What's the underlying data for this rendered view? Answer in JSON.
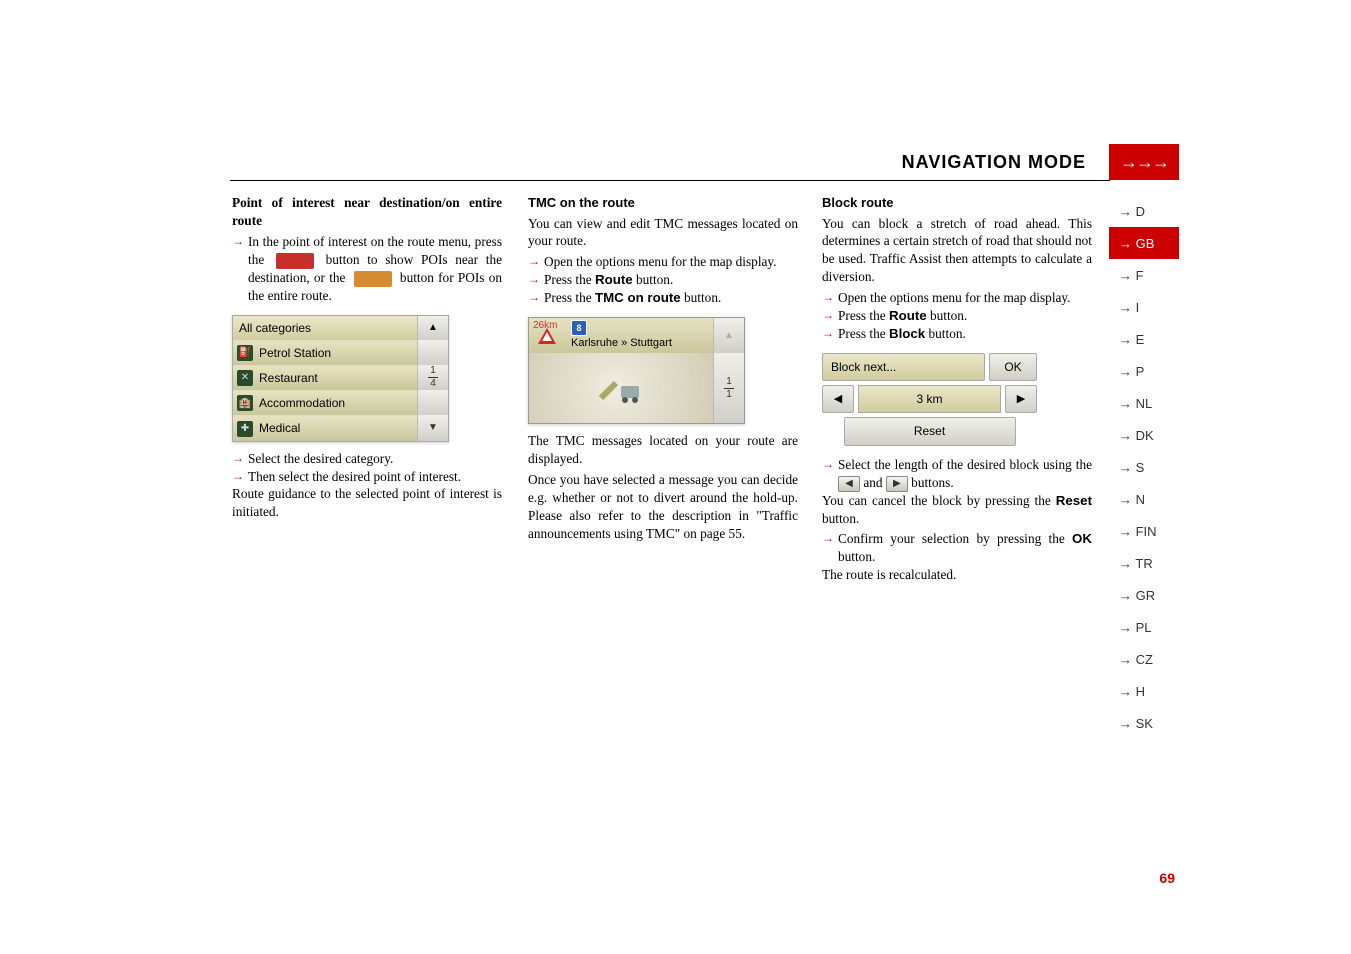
{
  "header": {
    "title": "NAVIGATION MODE",
    "arrows": "→→→"
  },
  "sidebar": {
    "items": [
      {
        "label": "→ D",
        "active": false
      },
      {
        "label": "→ GB",
        "active": true
      },
      {
        "label": "→ F",
        "active": false
      },
      {
        "label": "→ I",
        "active": false
      },
      {
        "label": "→ E",
        "active": false
      },
      {
        "label": "→ P",
        "active": false
      },
      {
        "label": "→ NL",
        "active": false
      },
      {
        "label": "→ DK",
        "active": false
      },
      {
        "label": "→ S",
        "active": false
      },
      {
        "label": "→ N",
        "active": false
      },
      {
        "label": "→ FIN",
        "active": false
      },
      {
        "label": "→ TR",
        "active": false
      },
      {
        "label": "→ GR",
        "active": false
      },
      {
        "label": "→ PL",
        "active": false
      },
      {
        "label": "→ CZ",
        "active": false
      },
      {
        "label": "→ H",
        "active": false
      },
      {
        "label": "→ SK",
        "active": false
      }
    ]
  },
  "col1": {
    "heading": "Point of interest near destination/on entire route",
    "p1a": "In the point of interest on the route menu, press the",
    "p1b": "button to show POIs near the destination, or the",
    "p1c": "button for POIs on the entire route.",
    "btn1_bg": "#c62f2a",
    "btn2_bg": "#d68b2e",
    "cats": {
      "title": "All categories",
      "rows": [
        {
          "icon": "⛽",
          "label": "Petrol Station"
        },
        {
          "icon": "✕",
          "label": "Restaurant"
        },
        {
          "icon": "🏨",
          "label": "Accommodation"
        },
        {
          "icon": "✚",
          "label": "Medical"
        }
      ],
      "frac_top": "1",
      "frac_bot": "4",
      "up": "▲",
      "down": "▼"
    },
    "step2": "Select the desired category.",
    "step3": "Then select the desired point of interest.",
    "p2": "Route guidance to the selected point of interest is initiated."
  },
  "col2": {
    "heading": "TMC on the route",
    "p1": "You can view and edit TMC messages located on your route.",
    "step1": "Open the options menu for the map display.",
    "step2_a": "Press the ",
    "step2_b": "Route",
    "step2_c": " button.",
    "step3_a": "Press the ",
    "step3_b": "TMC on route",
    "step3_c": " button.",
    "tmc": {
      "dist": "26km",
      "road": "8",
      "route": "Karlsruhe » Stuttgart",
      "frac_top": "1",
      "frac_bot": "1",
      "up": "▲"
    },
    "p2": "The TMC messages located on your route are displayed.",
    "p3": "Once you have selected a message you can decide e.g. whether or not to divert around the hold-up. Please also refer to the description in \"Traffic announcements using TMC\" on page 55."
  },
  "col3": {
    "heading": "Block route",
    "p1": "You can block a stretch of road ahead. This determines a certain stretch of road that should not be used. Traffic Assist then attempts to calculate a diversion.",
    "step1": "Open the options menu for the map display.",
    "step2_a": "Press the ",
    "step2_b": "Route",
    "step2_c": " button.",
    "step3_a": "Press the ",
    "step3_b": "Block",
    "step3_c": " button.",
    "block": {
      "next": "Block next...",
      "ok": "OK",
      "dist": "3 km",
      "reset": "Reset",
      "left": "◀",
      "right": "▶"
    },
    "step4_a": "Select the length of the desired block using the ",
    "step4_b": " and ",
    "step4_c": " buttons.",
    "lbtn": "◀",
    "rbtn": "▶",
    "p2_a": "You can cancel the block by pressing the ",
    "p2_b": "Reset",
    "p2_c": " button.",
    "step5_a": "Confirm your selection by pressing the ",
    "step5_b": "OK",
    "step5_c": " button.",
    "p3": "The route is recalculated."
  },
  "page": "69",
  "colors": {
    "accent": "#c00",
    "panel_grad_top": "#eae7c8",
    "panel_grad_bot": "#d0cda0"
  }
}
